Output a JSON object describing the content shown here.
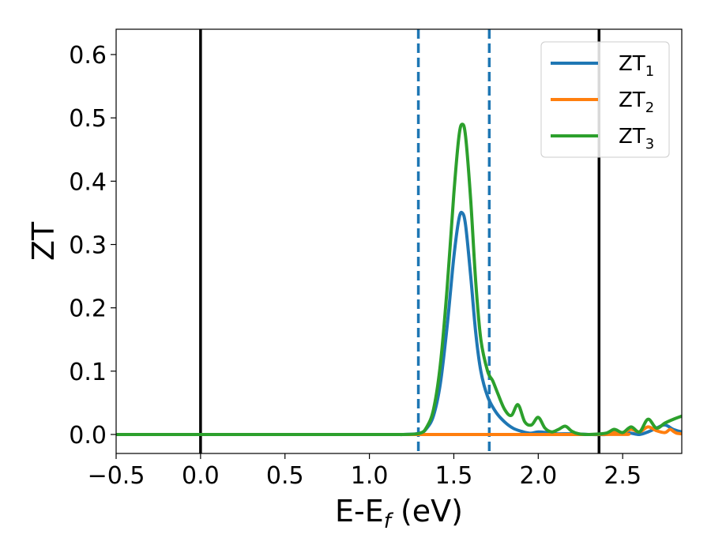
{
  "chart_data": {
    "type": "line",
    "xlabel_main": "E-E",
    "xlabel_sub": "f",
    "xlabel_tail": " (eV)",
    "ylabel": "ZT",
    "xlim": [
      -0.5,
      2.85
    ],
    "ylim": [
      -0.03,
      0.64
    ],
    "xticks": [
      -0.5,
      0.0,
      0.5,
      1.0,
      1.5,
      2.0,
      2.5
    ],
    "xtick_labels": [
      "−0.5",
      "0.0",
      "0.5",
      "1.0",
      "1.5",
      "2.0",
      "2.5"
    ],
    "yticks": [
      0.0,
      0.1,
      0.2,
      0.3,
      0.4,
      0.5,
      0.6
    ],
    "ytick_labels": [
      "0.0",
      "0.1",
      "0.2",
      "0.3",
      "0.4",
      "0.5",
      "0.6"
    ],
    "legend_placement": "top-right",
    "vlines": [
      {
        "x": 0.0,
        "style": "solid",
        "color": "#000000"
      },
      {
        "x": 2.36,
        "style": "solid",
        "color": "#000000"
      },
      {
        "x": 1.29,
        "style": "dashed",
        "color": "#1f77b4"
      },
      {
        "x": 1.71,
        "style": "dashed",
        "color": "#1f77b4"
      }
    ],
    "series": [
      {
        "name": "ZT",
        "sub": "1",
        "color": "#1f77b4",
        "x": [
          -0.5,
          1.0,
          1.2,
          1.3,
          1.34,
          1.38,
          1.42,
          1.46,
          1.5,
          1.53,
          1.55,
          1.57,
          1.6,
          1.63,
          1.66,
          1.7,
          1.75,
          1.8,
          1.85,
          1.9,
          1.95,
          2.0,
          2.05,
          2.1,
          2.2,
          2.3,
          2.4,
          2.5,
          2.55,
          2.6,
          2.65,
          2.7,
          2.75,
          2.8,
          2.85
        ],
        "y": [
          0.0,
          0.0,
          0.0,
          0.002,
          0.01,
          0.03,
          0.08,
          0.17,
          0.28,
          0.34,
          0.35,
          0.33,
          0.25,
          0.16,
          0.1,
          0.06,
          0.035,
          0.02,
          0.01,
          0.005,
          0.002,
          0.004,
          0.003,
          0.001,
          0.001,
          0.0,
          0.0,
          0.003,
          0.002,
          0.0,
          0.004,
          0.01,
          0.015,
          0.008,
          0.004
        ]
      },
      {
        "name": "ZT",
        "sub": "2",
        "color": "#ff7f0e",
        "x": [
          -0.5,
          2.3,
          2.4,
          2.45,
          2.5,
          2.55,
          2.6,
          2.65,
          2.7,
          2.75,
          2.78,
          2.8,
          2.82,
          2.85
        ],
        "y": [
          0.0,
          0.0,
          0.001,
          0.004,
          0.003,
          0.008,
          0.004,
          0.012,
          0.006,
          0.003,
          0.008,
          0.005,
          0.002,
          0.001
        ]
      },
      {
        "name": "ZT",
        "sub": "3",
        "color": "#2ca02c",
        "x": [
          -0.5,
          1.0,
          1.2,
          1.3,
          1.34,
          1.38,
          1.42,
          1.46,
          1.5,
          1.53,
          1.55,
          1.57,
          1.6,
          1.63,
          1.66,
          1.7,
          1.73,
          1.76,
          1.8,
          1.84,
          1.88,
          1.92,
          1.96,
          2.0,
          2.04,
          2.08,
          2.12,
          2.16,
          2.2,
          2.24,
          2.3,
          2.4,
          2.45,
          2.5,
          2.55,
          2.6,
          2.65,
          2.7,
          2.75,
          2.8,
          2.85
        ],
        "y": [
          0.0,
          0.0,
          0.0,
          0.002,
          0.012,
          0.04,
          0.11,
          0.23,
          0.38,
          0.47,
          0.49,
          0.47,
          0.37,
          0.24,
          0.15,
          0.1,
          0.085,
          0.065,
          0.04,
          0.03,
          0.047,
          0.02,
          0.015,
          0.027,
          0.01,
          0.004,
          0.008,
          0.013,
          0.005,
          0.001,
          0.0,
          0.002,
          0.008,
          0.003,
          0.012,
          0.004,
          0.024,
          0.01,
          0.018,
          0.024,
          0.029
        ]
      }
    ]
  }
}
